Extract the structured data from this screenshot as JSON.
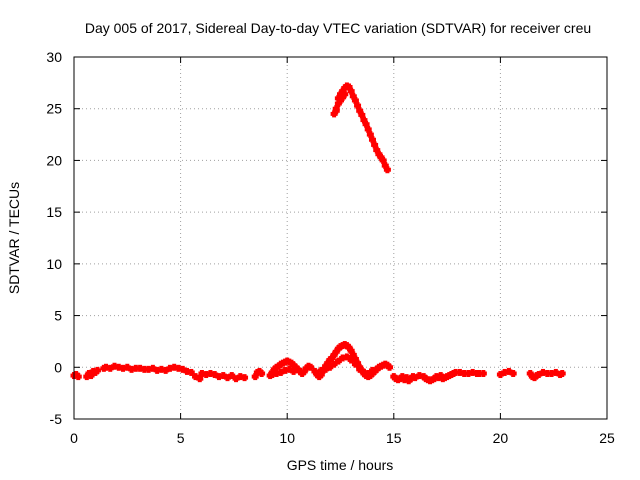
{
  "chart_data": {
    "type": "scatter",
    "title": "Day 005 of 2017, Sidereal Day-to-day VTEC variation (SDTVAR) for receiver creu",
    "xlabel": "GPS time / hours",
    "ylabel": "SDTVAR / TECUs",
    "xlim": [
      0,
      25
    ],
    "ylim": [
      -5,
      30
    ],
    "xticks": [
      0,
      5,
      10,
      15,
      20,
      25
    ],
    "yticks": [
      -5,
      0,
      5,
      10,
      15,
      20,
      25,
      30
    ],
    "grid": true,
    "marker_color": "#ff0000",
    "series": [
      {
        "name": "SDTVAR",
        "points": [
          [
            0.0,
            -0.8
          ],
          [
            0.1,
            -0.7
          ],
          [
            0.2,
            -0.9
          ],
          [
            0.6,
            -0.9
          ],
          [
            0.7,
            -0.6
          ],
          [
            0.8,
            -0.8
          ],
          [
            0.9,
            -0.4
          ],
          [
            1.0,
            -0.5
          ],
          [
            1.1,
            -0.3
          ],
          [
            1.4,
            -0.1
          ],
          [
            1.5,
            0.0
          ],
          [
            1.7,
            -0.1
          ],
          [
            1.9,
            0.1
          ],
          [
            2.1,
            0.0
          ],
          [
            2.3,
            -0.1
          ],
          [
            2.5,
            0.0
          ],
          [
            2.7,
            -0.2
          ],
          [
            2.9,
            -0.1
          ],
          [
            3.1,
            -0.1
          ],
          [
            3.3,
            -0.2
          ],
          [
            3.5,
            -0.2
          ],
          [
            3.7,
            -0.1
          ],
          [
            3.9,
            -0.3
          ],
          [
            4.1,
            -0.2
          ],
          [
            4.3,
            -0.3
          ],
          [
            4.5,
            -0.1
          ],
          [
            4.7,
            0.0
          ],
          [
            4.9,
            -0.1
          ],
          [
            5.1,
            -0.2
          ],
          [
            5.3,
            -0.4
          ],
          [
            5.5,
            -0.5
          ],
          [
            5.7,
            -0.9
          ],
          [
            5.9,
            -1.1
          ],
          [
            6.0,
            -0.6
          ],
          [
            6.2,
            -0.7
          ],
          [
            6.4,
            -0.6
          ],
          [
            6.6,
            -0.7
          ],
          [
            6.8,
            -0.9
          ],
          [
            7.0,
            -0.8
          ],
          [
            7.2,
            -1.0
          ],
          [
            7.4,
            -0.8
          ],
          [
            7.6,
            -1.1
          ],
          [
            7.8,
            -0.9
          ],
          [
            8.0,
            -1.0
          ],
          [
            8.5,
            -0.9
          ],
          [
            8.6,
            -0.5
          ],
          [
            8.7,
            -0.4
          ],
          [
            8.8,
            -0.6
          ],
          [
            9.2,
            -0.8
          ],
          [
            9.3,
            -0.5
          ],
          [
            9.4,
            -0.2
          ],
          [
            9.5,
            0.0
          ],
          [
            9.6,
            0.1
          ],
          [
            9.7,
            0.3
          ],
          [
            9.8,
            0.4
          ],
          [
            9.9,
            0.5
          ],
          [
            10.0,
            0.6
          ],
          [
            10.1,
            0.5
          ],
          [
            10.2,
            0.4
          ],
          [
            10.3,
            0.2
          ],
          [
            10.4,
            0.0
          ],
          [
            10.5,
            -0.2
          ],
          [
            10.6,
            -0.4
          ],
          [
            10.7,
            -0.6
          ],
          [
            10.8,
            -0.4
          ],
          [
            10.9,
            -0.1
          ],
          [
            11.0,
            0.1
          ],
          [
            11.1,
            0.0
          ],
          [
            9.3,
            -0.7
          ],
          [
            9.5,
            -0.6
          ],
          [
            9.7,
            -0.5
          ],
          [
            9.9,
            -0.3
          ],
          [
            10.1,
            -0.2
          ],
          [
            10.3,
            -0.4
          ],
          [
            11.3,
            -0.4
          ],
          [
            11.4,
            -0.7
          ],
          [
            11.5,
            -0.9
          ],
          [
            11.6,
            -0.7
          ],
          [
            11.7,
            -0.3
          ],
          [
            11.8,
            0.1
          ],
          [
            11.9,
            0.4
          ],
          [
            12.0,
            0.7
          ],
          [
            12.1,
            0.9
          ],
          [
            12.2,
            1.2
          ],
          [
            12.3,
            1.5
          ],
          [
            12.4,
            1.8
          ],
          [
            12.5,
            2.0
          ],
          [
            12.6,
            2.1
          ],
          [
            12.7,
            2.2
          ],
          [
            12.8,
            2.1
          ],
          [
            12.9,
            1.9
          ],
          [
            13.0,
            1.6
          ],
          [
            13.1,
            1.2
          ],
          [
            13.2,
            0.8
          ],
          [
            13.3,
            0.4
          ],
          [
            13.4,
            0.0
          ],
          [
            13.5,
            -0.3
          ],
          [
            13.6,
            -0.6
          ],
          [
            13.7,
            -0.8
          ],
          [
            13.8,
            -0.9
          ],
          [
            13.9,
            -0.8
          ],
          [
            14.0,
            -0.6
          ],
          [
            14.1,
            -0.4
          ],
          [
            14.2,
            -0.2
          ],
          [
            14.3,
            0.0
          ],
          [
            14.4,
            0.1
          ],
          [
            14.5,
            0.2
          ],
          [
            14.6,
            0.3
          ],
          [
            14.7,
            0.2
          ],
          [
            14.8,
            0.0
          ],
          [
            11.6,
            -0.3
          ],
          [
            11.8,
            -0.2
          ],
          [
            12.0,
            0.0
          ],
          [
            12.2,
            0.3
          ],
          [
            12.4,
            0.6
          ],
          [
            12.6,
            0.9
          ],
          [
            12.8,
            1.0
          ],
          [
            13.0,
            0.7
          ],
          [
            13.2,
            0.3
          ],
          [
            13.4,
            -0.2
          ],
          [
            13.6,
            -0.5
          ],
          [
            13.8,
            -0.6
          ],
          [
            14.0,
            -0.3
          ],
          [
            12.2,
            24.5
          ],
          [
            12.3,
            25.0
          ],
          [
            12.4,
            26.0
          ],
          [
            12.5,
            26.4
          ],
          [
            12.6,
            26.7
          ],
          [
            12.7,
            27.0
          ],
          [
            12.8,
            27.2
          ],
          [
            12.9,
            27.1
          ],
          [
            13.0,
            26.7
          ],
          [
            13.1,
            26.2
          ],
          [
            13.2,
            25.8
          ],
          [
            13.3,
            25.3
          ],
          [
            13.4,
            24.8
          ],
          [
            13.5,
            24.4
          ],
          [
            13.6,
            23.9
          ],
          [
            13.7,
            23.5
          ],
          [
            13.8,
            23.0
          ],
          [
            13.9,
            22.5
          ],
          [
            14.0,
            22.0
          ],
          [
            14.1,
            21.5
          ],
          [
            14.2,
            21.0
          ],
          [
            14.3,
            20.6
          ],
          [
            14.4,
            20.3
          ],
          [
            14.5,
            20.0
          ],
          [
            14.6,
            19.5
          ],
          [
            14.7,
            19.1
          ],
          [
            12.3,
            24.8
          ],
          [
            12.4,
            25.5
          ],
          [
            12.5,
            25.8
          ],
          [
            12.6,
            26.1
          ],
          [
            12.7,
            26.4
          ],
          [
            15.0,
            -0.9
          ],
          [
            15.1,
            -1.1
          ],
          [
            15.2,
            -1.2
          ],
          [
            15.3,
            -1.1
          ],
          [
            15.4,
            -0.9
          ],
          [
            15.5,
            -1.2
          ],
          [
            15.6,
            -1.0
          ],
          [
            15.7,
            -1.3
          ],
          [
            15.8,
            -1.1
          ],
          [
            15.9,
            -0.9
          ],
          [
            16.0,
            -1.0
          ],
          [
            16.2,
            -0.8
          ],
          [
            16.4,
            -0.9
          ],
          [
            16.5,
            -1.1
          ],
          [
            16.6,
            -1.2
          ],
          [
            16.7,
            -1.3
          ],
          [
            16.8,
            -1.2
          ],
          [
            16.9,
            -1.1
          ],
          [
            17.0,
            -0.9
          ],
          [
            17.1,
            -1.0
          ],
          [
            17.2,
            -0.8
          ],
          [
            17.3,
            -1.1
          ],
          [
            17.4,
            -1.0
          ],
          [
            17.5,
            -0.9
          ],
          [
            17.6,
            -0.8
          ],
          [
            17.7,
            -0.7
          ],
          [
            17.8,
            -0.6
          ],
          [
            17.9,
            -0.5
          ],
          [
            18.1,
            -0.5
          ],
          [
            18.3,
            -0.6
          ],
          [
            18.5,
            -0.6
          ],
          [
            18.7,
            -0.5
          ],
          [
            18.9,
            -0.6
          ],
          [
            19.0,
            -0.6
          ],
          [
            19.2,
            -0.6
          ],
          [
            20.0,
            -0.7
          ],
          [
            20.2,
            -0.5
          ],
          [
            20.4,
            -0.4
          ],
          [
            20.6,
            -0.6
          ],
          [
            21.4,
            -0.6
          ],
          [
            21.5,
            -0.9
          ],
          [
            21.6,
            -1.0
          ],
          [
            21.7,
            -0.8
          ],
          [
            21.8,
            -0.7
          ],
          [
            22.0,
            -0.5
          ],
          [
            22.2,
            -0.6
          ],
          [
            22.4,
            -0.6
          ],
          [
            22.6,
            -0.5
          ],
          [
            22.8,
            -0.7
          ],
          [
            22.9,
            -0.6
          ]
        ]
      }
    ]
  }
}
